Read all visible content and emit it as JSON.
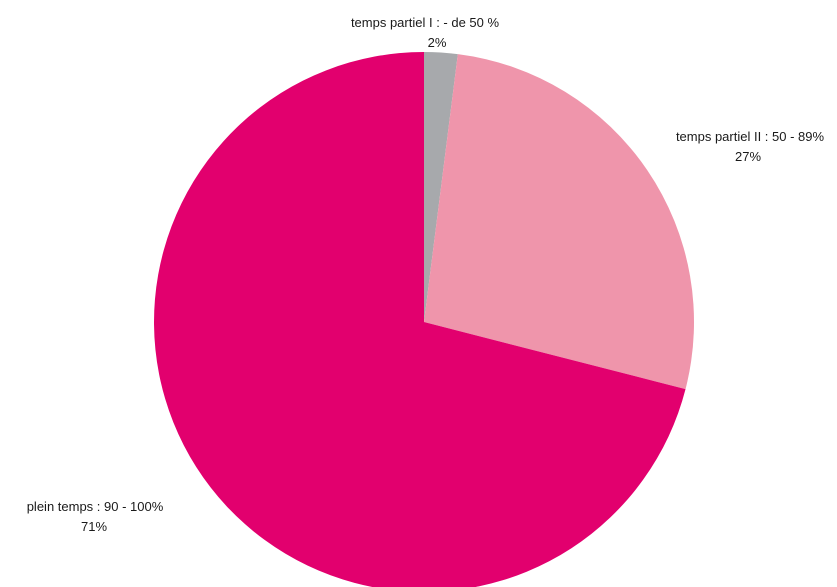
{
  "chart_data": {
    "type": "pie",
    "start": "top",
    "direction": "clockwise",
    "slices": [
      {
        "label": "temps partiel I : - de 50 %",
        "value_label": "2%",
        "value": 2,
        "color": "#a7a9ac"
      },
      {
        "label": "temps partiel II : 50 - 89%",
        "value_label": "27%",
        "value": 27,
        "color": "#ef95ab"
      },
      {
        "label": "plein temps : 90 - 100%",
        "value_label": "71%",
        "value": 71,
        "color": "#e2006e"
      }
    ]
  }
}
